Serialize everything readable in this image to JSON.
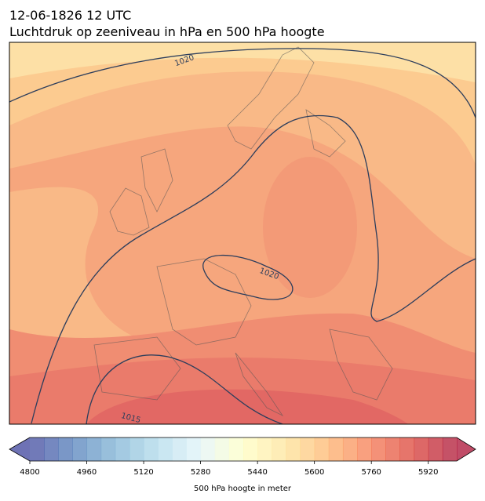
{
  "header": {
    "title": "12-06-1826 12 UTC",
    "subtitle": "Luchtdruk op zeeniveau in hPa en 500 hPa hoogte"
  },
  "contour_labels": [
    "1020",
    "1020",
    "1015"
  ],
  "colorbar": {
    "label": "500 hPa hoogte in meter",
    "range": [
      4800,
      6000
    ],
    "step": 40,
    "ticks": [
      4800,
      4960,
      5120,
      5280,
      5440,
      5600,
      5760,
      5920
    ],
    "colors": [
      "#313695",
      "#4575b4",
      "#74add1",
      "#abd9e9",
      "#e0f3f8",
      "#ffffbf",
      "#fee090",
      "#fdae61",
      "#f46d43",
      "#d73027",
      "#a50026"
    ],
    "opacity": 0.7
  }
}
